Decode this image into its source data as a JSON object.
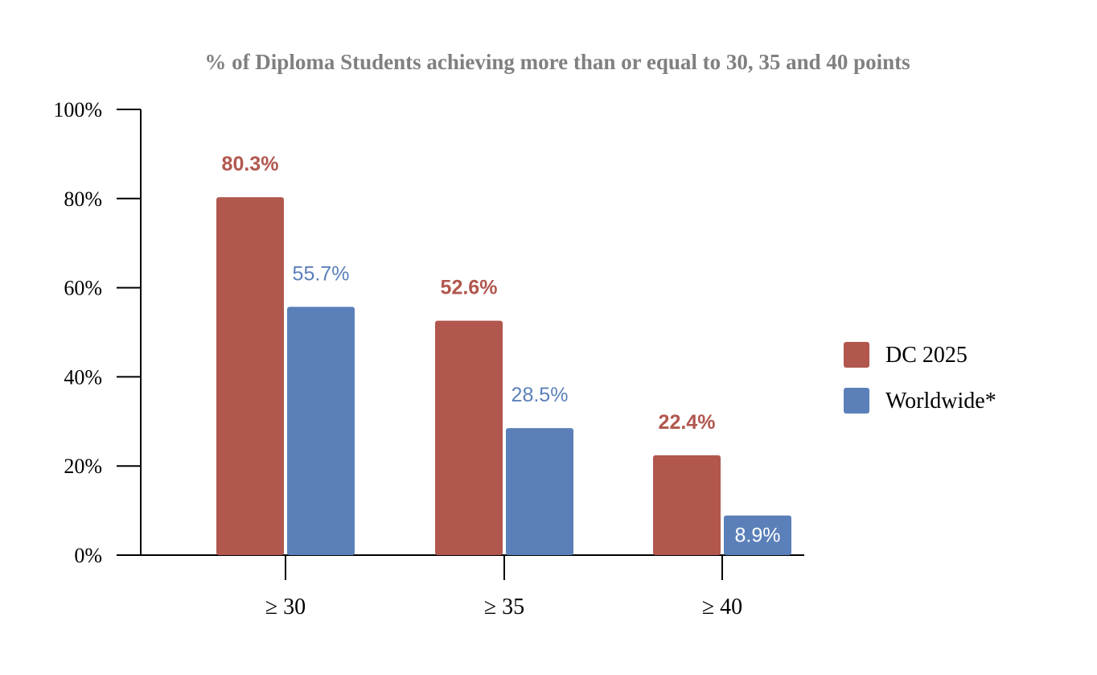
{
  "chart_data": {
    "type": "bar",
    "title": "% of Diploma Students achieving more than or equal to 30, 35 and 40 points",
    "xlabel": "",
    "ylabel": "",
    "categories": [
      "≥ 30",
      "≥ 35",
      "≥ 40"
    ],
    "series": [
      {
        "name": "DC 2025",
        "values": [
          80.3,
          52.6,
          22.4
        ],
        "labels": [
          "80.3%",
          "52.6%",
          "22.4%"
        ],
        "color": "#b1574e"
      },
      {
        "name": "Worldwide*",
        "values": [
          55.7,
          28.5,
          8.9
        ],
        "labels": [
          "55.7%",
          "28.5%",
          "8.9%"
        ],
        "color": "#5b80b9"
      }
    ],
    "ylim": [
      0,
      100
    ],
    "yticks": [
      0,
      20,
      40,
      60,
      80,
      100
    ],
    "ytick_labels": [
      "0%",
      "20%",
      "40%",
      "60%",
      "80%",
      "100%"
    ],
    "grid": false,
    "legend": "right",
    "colors": {
      "title": "#808080",
      "axis": "#000000",
      "inside_label": "#ffffff"
    }
  }
}
